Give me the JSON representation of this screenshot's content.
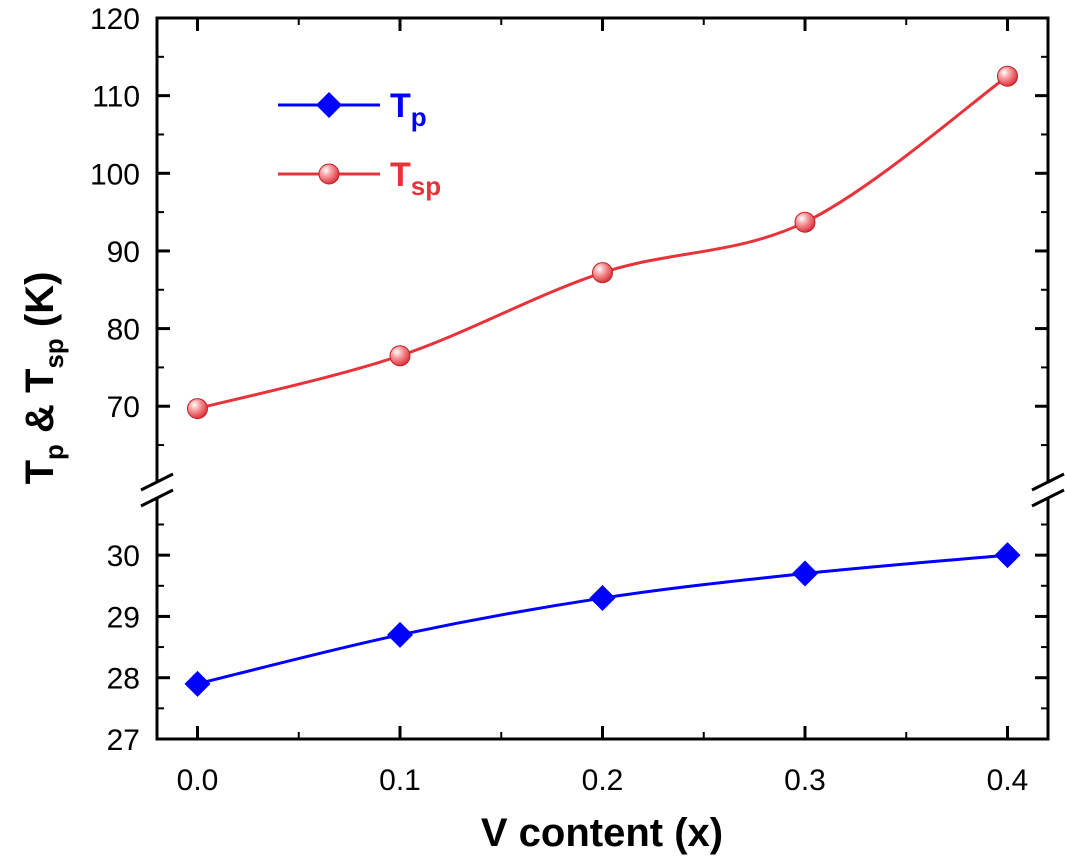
{
  "chart_data": {
    "type": "line",
    "xlabel": "V content (x)",
    "ylabel": {
      "main": "T",
      "sub1": "p",
      "mid": " & T",
      "sub2": "sp",
      "tail": " (K)"
    },
    "x": [
      0.0,
      0.1,
      0.2,
      0.3,
      0.4
    ],
    "x_ticks": [
      "0.0",
      "0.1",
      "0.2",
      "0.3",
      "0.4"
    ],
    "xlim": [
      -0.02,
      0.42
    ],
    "axis_break": true,
    "y_segments": [
      {
        "range": [
          27,
          30.9
        ],
        "ticks": [
          27,
          28,
          29,
          30
        ]
      },
      {
        "range": [
          60.5,
          120
        ],
        "ticks": [
          70,
          80,
          90,
          100,
          110,
          120
        ]
      }
    ],
    "series": [
      {
        "name": "T",
        "name_sub": "p",
        "values": [
          27.9,
          28.7,
          29.3,
          29.7,
          30.0
        ],
        "color": "#0000ff",
        "marker": "diamond"
      },
      {
        "name": "T",
        "name_sub": "sp",
        "values": [
          69.7,
          76.5,
          87.2,
          93.7,
          112.5
        ],
        "color": "#e8333a",
        "marker": "sphere"
      }
    ],
    "legend_position": "top-left",
    "grid": false
  }
}
